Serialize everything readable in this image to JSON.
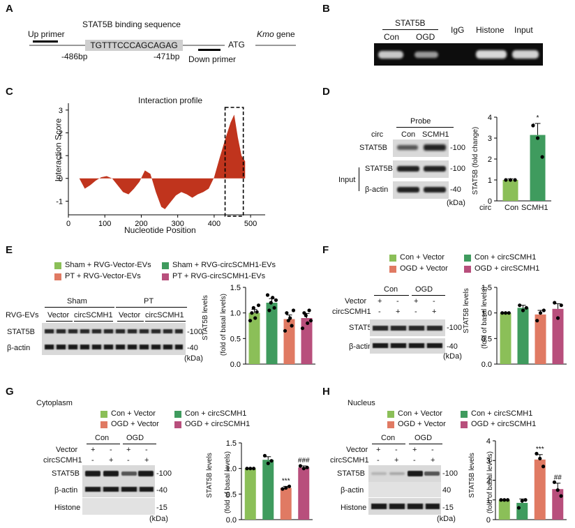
{
  "colors": {
    "green_light": "#8bbf58",
    "green_dark": "#3f9b5e",
    "salmon": "#e07a63",
    "magenta": "#b84f7c",
    "red_area": "#c0341d"
  },
  "panelA": {
    "label": "A",
    "binding_title": "STAT5B binding sequence",
    "up_primer": "Up primer",
    "sequence": "TGTTTCCCAGCAGAG",
    "pos_left": "-486bp",
    "pos_right": "-471bp",
    "atg": "ATG",
    "down_primer": "Down primer",
    "gene_italic": "Kmo",
    "gene_suffix": " gene"
  },
  "panelB": {
    "label": "B",
    "stat5b": "STAT5B",
    "con": "Con",
    "ogd": "OGD",
    "igg": "IgG",
    "histone": "Histone",
    "input": "Input"
  },
  "panelC": {
    "label": "C",
    "title": "Interaction profile",
    "ylabel": "Interaction Score",
    "xlabel": "Nucleotide Position"
  },
  "panelD": {
    "label": "D",
    "probe": "Probe",
    "circ": "circ",
    "con": "Con",
    "scmh1": "SCMH1",
    "stat5b": "STAT5B",
    "input": "Input",
    "bactin": "β-actin",
    "mw100a": "-100",
    "mw100b": "-100",
    "mw40": "-40",
    "kda": "(kDa)",
    "ylabel": "STAT5B (fold change)",
    "sig": "*",
    "circ2": "circ"
  },
  "panelE": {
    "label": "E",
    "leg1": "Sham + RVG-Vector-EVs",
    "leg2": "Sham + RVG-circSCMH1-EVs",
    "leg3": "PT + RVG-Vector-EVs",
    "leg4": "PT + RVG-circSCMH1-EVs",
    "sham": "Sham",
    "pt": "PT",
    "rvg": "RVG-EVs",
    "vector1": "Vector",
    "circ1": "circSCMH1",
    "vector2": "Vector",
    "circ2": "circSCMH1",
    "stat5b": "STAT5B",
    "bactin": "β-actin",
    "mw100": "-100",
    "mw40": "-40",
    "kda": "(kDa)",
    "ylabel1": "STAT5B levels",
    "ylabel2": "(fold of basal levels)"
  },
  "panelF": {
    "label": "F",
    "leg1": "Con + Vector",
    "leg2": "Con + circSCMH1",
    "leg3": "OGD + Vector",
    "leg4": "OGD + circSCMH1",
    "con": "Con",
    "ogd": "OGD",
    "vector": "Vector",
    "circscmh1": "circSCMH1",
    "plus": "+",
    "minus": "-",
    "stat5b": "STAT5B",
    "bactin": "β-actin",
    "mw100": "-100",
    "mw40": "-40",
    "kda": "(kDa)",
    "ylabel1": "STAT5B levels",
    "ylabel2": "(fold of basal levels)"
  },
  "panelG": {
    "label": "G",
    "compartment": "Cytoplasm",
    "leg1": "Con + Vector",
    "leg2": "Con + circSCMH1",
    "leg3": "OGD + Vector",
    "leg4": "OGD + circSCMH1",
    "con": "Con",
    "ogd": "OGD",
    "vector": "Vector",
    "circscmh1": "circSCMH1",
    "plus": "+",
    "minus": "-",
    "stat5b": "STAT5B",
    "bactin": "β-actin",
    "histone": "Histone",
    "mw100": "-100",
    "mw40": "-40",
    "mw15": "-15",
    "kda": "(kDa)",
    "ylabel1": "STAT5B levels",
    "ylabel2": "(fold of basal levels)",
    "sig1": "***",
    "sig2": "###"
  },
  "panelH": {
    "label": "H",
    "compartment": "Nucleus",
    "leg1": "Con + Vector",
    "leg2": "Con + circSCMH1",
    "leg3": "OGD + Vector",
    "leg4": "OGD + circSCMH1",
    "con": "Con",
    "ogd": "OGD",
    "vector": "Vector",
    "circscmh1": "circSCMH1",
    "plus": "+",
    "minus": "-",
    "stat5b": "STAT5B",
    "bactin": "β-actin",
    "histone": "Histone",
    "mw100": "-100",
    "mw40": "40",
    "mw15": "-15",
    "kda": "(kDa)",
    "ylabel1": "STAT5B levels",
    "ylabel2": "(fold of basal levels)",
    "sig1": "***",
    "sig2": "##"
  },
  "chart_data": [
    {
      "panel": "C",
      "type": "area",
      "title": "Interaction profile",
      "xlabel": "Nucleotide Position",
      "ylabel": "Interaction Score",
      "xlim": [
        0,
        540
      ],
      "ylim": [
        -1.6,
        3.3
      ],
      "xticks": [
        0,
        100,
        200,
        300,
        400,
        500
      ],
      "yticks": [
        -1,
        0,
        1,
        2,
        3
      ],
      "x": [
        30,
        45,
        60,
        75,
        90,
        105,
        120,
        135,
        150,
        165,
        180,
        195,
        210,
        225,
        240,
        255,
        265,
        280,
        295,
        310,
        325,
        340,
        355,
        370,
        385,
        400,
        415,
        430,
        445,
        455,
        465,
        475,
        485
      ],
      "y": [
        0,
        -0.45,
        -0.3,
        -0.1,
        0.05,
        0.1,
        0.0,
        -0.3,
        -0.6,
        -0.7,
        -0.45,
        -0.15,
        0.35,
        0.2,
        -0.6,
        -1.25,
        -1.35,
        -1.05,
        -0.75,
        -0.6,
        -0.7,
        -0.85,
        -0.7,
        -0.6,
        -0.45,
        0.05,
        0.9,
        1.7,
        2.45,
        2.8,
        1.8,
        1.0,
        0.75
      ],
      "highlight_box": [
        430,
        480
      ]
    },
    {
      "panel": "D",
      "type": "bar",
      "categories": [
        "Con",
        "SCMH1"
      ],
      "values": [
        1.0,
        3.15
      ],
      "errors": [
        0.05,
        0.55
      ],
      "ylim": [
        0,
        4
      ],
      "yticks": [
        0,
        1,
        2,
        3,
        4
      ],
      "ylabel": "STAT5B (fold change)",
      "points": [
        [
          1.0,
          1.0,
          1.0
        ],
        [
          3.6,
          3.0,
          2.1
        ]
      ],
      "significance": [
        "",
        "*"
      ]
    },
    {
      "panel": "E",
      "type": "bar",
      "categories": [
        "Sham + RVG-Vector-EVs",
        "Sham + RVG-circSCMH1-EVs",
        "PT + RVG-Vector-EVs",
        "PT + RVG-circSCMH1-EVs"
      ],
      "values": [
        1.0,
        1.2,
        0.88,
        0.9
      ],
      "errors": [
        0.07,
        0.08,
        0.08,
        0.09
      ],
      "ylim": [
        0,
        1.5
      ],
      "yticks": [
        0.0,
        0.5,
        1.0,
        1.5
      ],
      "points": [
        [
          0.85,
          1.0,
          1.1,
          0.9,
          1.02,
          1.15
        ],
        [
          1.35,
          1.05,
          1.2,
          1.3,
          1.1,
          1.25
        ],
        [
          0.65,
          1.0,
          0.85,
          0.9,
          0.75,
          1.05
        ],
        [
          0.7,
          1.0,
          0.95,
          0.8,
          1.05,
          0.85
        ]
      ]
    },
    {
      "panel": "F",
      "type": "bar",
      "categories": [
        "Con + Vector",
        "Con + circSCMH1",
        "OGD + Vector",
        "OGD + circSCMH1"
      ],
      "values": [
        1.0,
        1.1,
        0.97,
        1.08
      ],
      "errors": [
        0.0,
        0.05,
        0.08,
        0.1
      ],
      "ylim": [
        0,
        1.5
      ],
      "yticks": [
        0.0,
        0.5,
        1.0,
        1.5
      ],
      "points": [
        [
          1.0,
          1.0,
          1.0
        ],
        [
          1.15,
          1.05,
          1.1
        ],
        [
          0.85,
          1.0,
          1.05
        ],
        [
          1.2,
          0.9,
          1.15
        ]
      ]
    },
    {
      "panel": "G",
      "type": "bar",
      "categories": [
        "Con + Vector",
        "Con + circSCMH1",
        "OGD + Vector",
        "OGD + circSCMH1"
      ],
      "values": [
        1.0,
        1.17,
        0.62,
        1.02
      ],
      "errors": [
        0.0,
        0.06,
        0.03,
        0.03
      ],
      "ylim": [
        0,
        1.5
      ],
      "yticks": [
        0.0,
        0.5,
        1.0,
        1.5
      ],
      "points": [
        [
          1.0,
          1.0,
          1.0
        ],
        [
          1.25,
          1.1,
          1.15
        ],
        [
          0.6,
          0.62,
          0.65
        ],
        [
          1.05,
          1.0,
          1.02
        ]
      ],
      "significance": [
        "",
        "",
        "***",
        "###"
      ]
    },
    {
      "panel": "H",
      "type": "bar",
      "categories": [
        "Con + Vector",
        "Con + circSCMH1",
        "OGD + Vector",
        "OGD + circSCMH1"
      ],
      "values": [
        1.0,
        0.85,
        3.05,
        1.55
      ],
      "errors": [
        0.0,
        0.2,
        0.25,
        0.3
      ],
      "ylim": [
        0,
        4
      ],
      "yticks": [
        0,
        1,
        2,
        3,
        4
      ],
      "points": [
        [
          1.0,
          1.0,
          1.0
        ],
        [
          0.6,
          0.95,
          1.0
        ],
        [
          3.35,
          3.1,
          2.7
        ],
        [
          1.9,
          1.5,
          1.2
        ]
      ],
      "significance": [
        "",
        "",
        "***",
        "##"
      ]
    }
  ]
}
